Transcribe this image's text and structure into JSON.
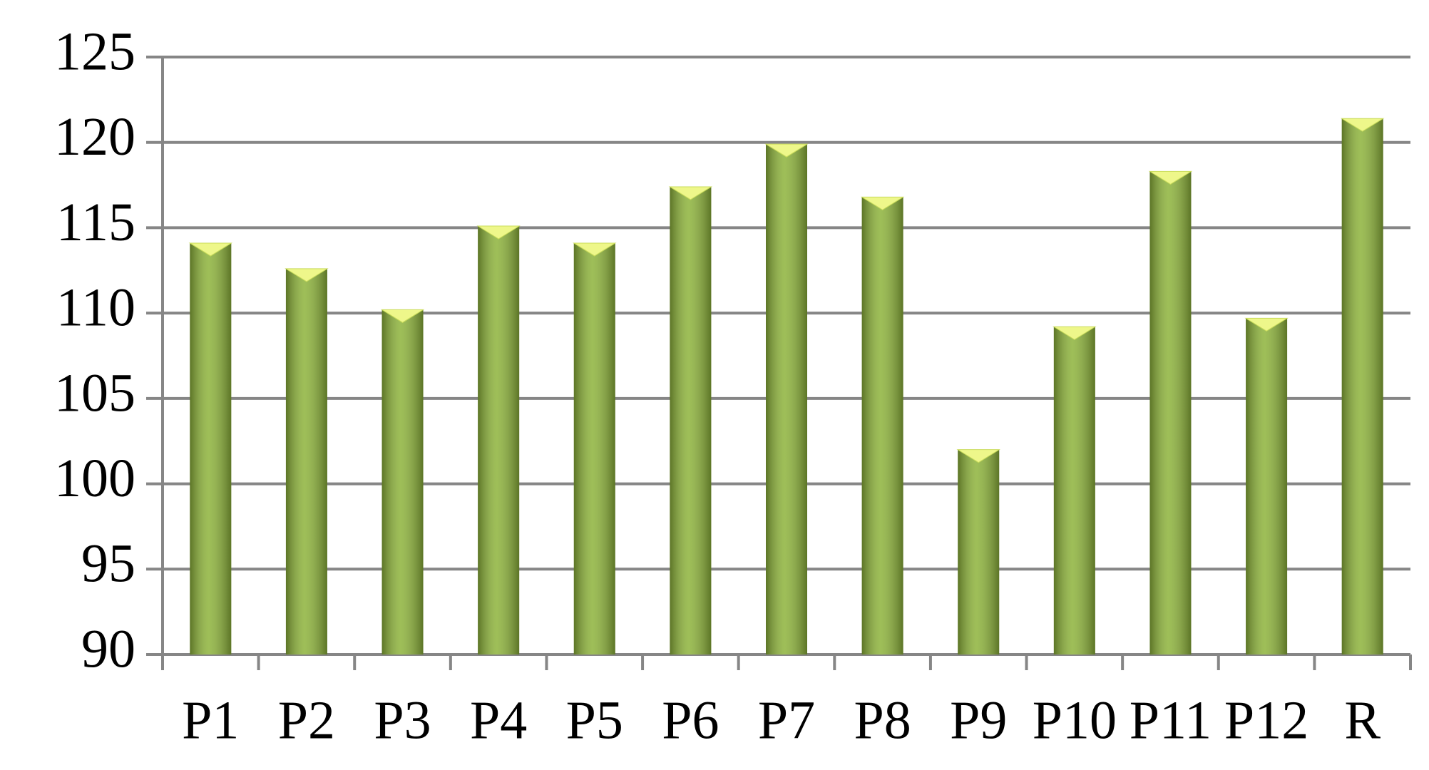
{
  "chart_data": {
    "type": "bar",
    "categories": [
      "P1",
      "P2",
      "P3",
      "P4",
      "P5",
      "P6",
      "P7",
      "P8",
      "P9",
      "P10",
      "P11",
      "P12",
      "R"
    ],
    "values": [
      114.1,
      112.6,
      110.2,
      115.1,
      114.1,
      117.4,
      119.9,
      116.8,
      102,
      109.2,
      118.3,
      109.7,
      121.4
    ],
    "color": "#8db33a",
    "ylim": [
      90,
      125
    ],
    "yticks": [
      90,
      95,
      100,
      105,
      110,
      115,
      120,
      125
    ],
    "grid": true
  }
}
